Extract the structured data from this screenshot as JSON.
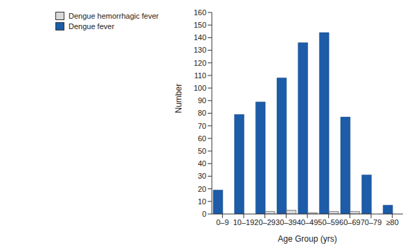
{
  "chart_data": {
    "type": "bar",
    "x_label": "Age Group (yrs)",
    "y_label": "Number",
    "categories": [
      "0–9",
      "10–19",
      "20–29",
      "30–39",
      "40–49",
      "50–59",
      "60–69",
      "70–79",
      "≥80"
    ],
    "series": [
      {
        "name": "Dengue fever",
        "color": "#1c5ca8",
        "values": [
          19,
          79,
          89,
          108,
          136,
          144,
          77,
          31,
          7
        ]
      },
      {
        "name": "Dengue hemorrhagic fever",
        "color": "#d9d9db",
        "values": [
          0,
          0,
          2,
          3,
          1,
          2,
          2,
          0,
          0
        ]
      }
    ],
    "ylim": [
      0,
      160
    ],
    "yticks": [
      0,
      10,
      20,
      30,
      40,
      50,
      60,
      70,
      80,
      90,
      100,
      110,
      120,
      130,
      140,
      150,
      160
    ],
    "grid": false,
    "legend": "upper left"
  }
}
